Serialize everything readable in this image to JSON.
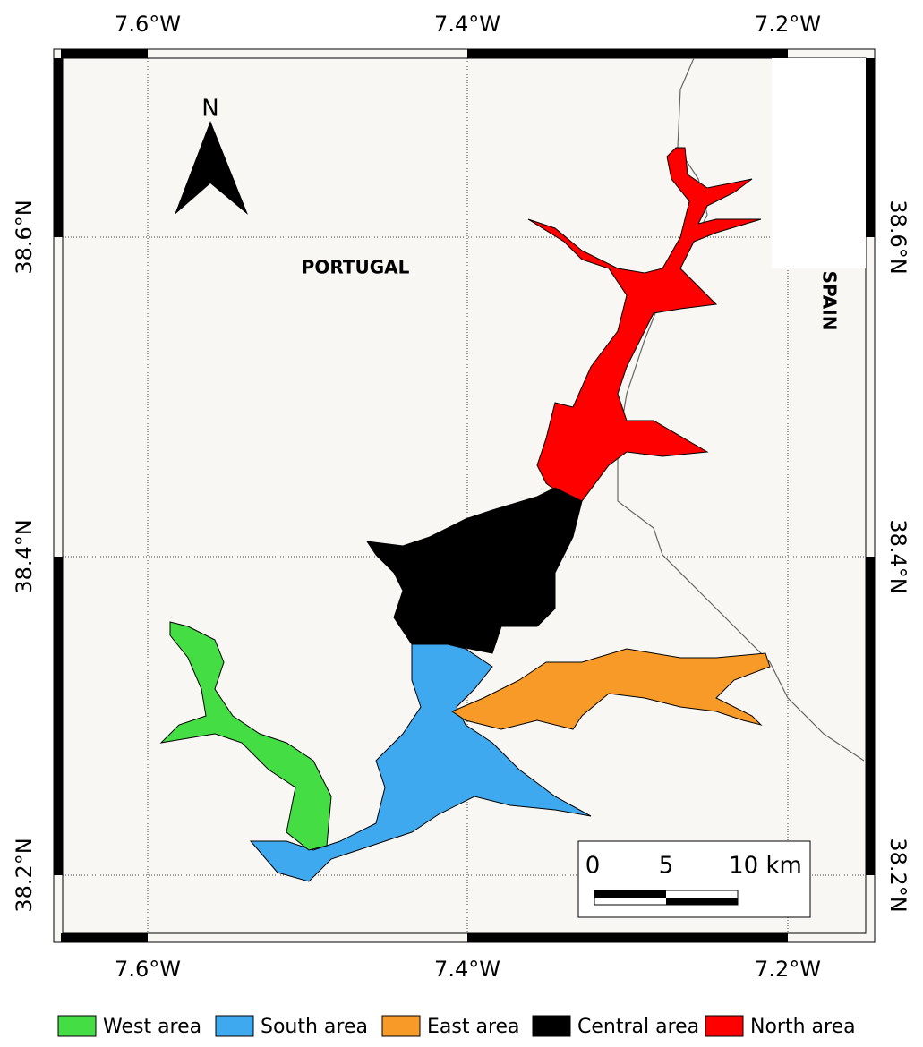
{
  "map": {
    "lon_labels": [
      "7.6°W",
      "7.4°W",
      "7.2°W"
    ],
    "lat_labels": [
      "38.6°N",
      "38.4°N",
      "38.2°N"
    ],
    "north": "N",
    "places": {
      "portugal": "PORTUGAL",
      "spain": "SPAIN"
    },
    "scale_labels": [
      "0",
      "5",
      "10 km"
    ],
    "legend": [
      {
        "name": "West area",
        "color": "#44dd44"
      },
      {
        "name": "South area",
        "color": "#3fa9f0"
      },
      {
        "name": "East area",
        "color": "#f79a28"
      },
      {
        "name": "Central area",
        "color": "#000000"
      },
      {
        "name": "North area",
        "color": "#ff0000"
      }
    ]
  }
}
